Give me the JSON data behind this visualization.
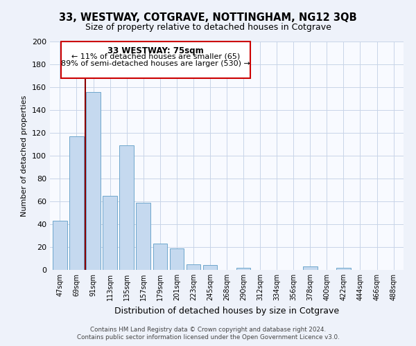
{
  "title": "33, WESTWAY, COTGRAVE, NOTTINGHAM, NG12 3QB",
  "subtitle": "Size of property relative to detached houses in Cotgrave",
  "xlabel": "Distribution of detached houses by size in Cotgrave",
  "ylabel": "Number of detached properties",
  "bar_values": [
    43,
    117,
    156,
    65,
    109,
    59,
    23,
    19,
    5,
    4,
    0,
    2,
    0,
    0,
    0,
    3,
    0,
    2,
    0,
    0,
    0
  ],
  "x_labels": [
    "47sqm",
    "69sqm",
    "91sqm",
    "113sqm",
    "135sqm",
    "157sqm",
    "179sqm",
    "201sqm",
    "223sqm",
    "245sqm",
    "268sqm",
    "290sqm",
    "312sqm",
    "334sqm",
    "356sqm",
    "378sqm",
    "400sqm",
    "422sqm",
    "444sqm",
    "466sqm",
    "488sqm"
  ],
  "bar_color": "#c5d9ef",
  "bar_edge_color": "#6ea6cc",
  "ylim": [
    0,
    200
  ],
  "yticks": [
    0,
    20,
    40,
    60,
    80,
    100,
    120,
    140,
    160,
    180,
    200
  ],
  "annotation_title": "33 WESTWAY: 75sqm",
  "annotation_line1": "← 11% of detached houses are smaller (65)",
  "annotation_line2": "89% of semi-detached houses are larger (530) →",
  "footer_line1": "Contains HM Land Registry data © Crown copyright and database right 2024.",
  "footer_line2": "Contains public sector information licensed under the Open Government Licence v3.0.",
  "bg_color": "#eef2fa",
  "plot_bg_color": "#f8faff",
  "grid_color": "#c8d4e8",
  "ref_line_color": "#8b0000",
  "ref_line_x": 1.5
}
